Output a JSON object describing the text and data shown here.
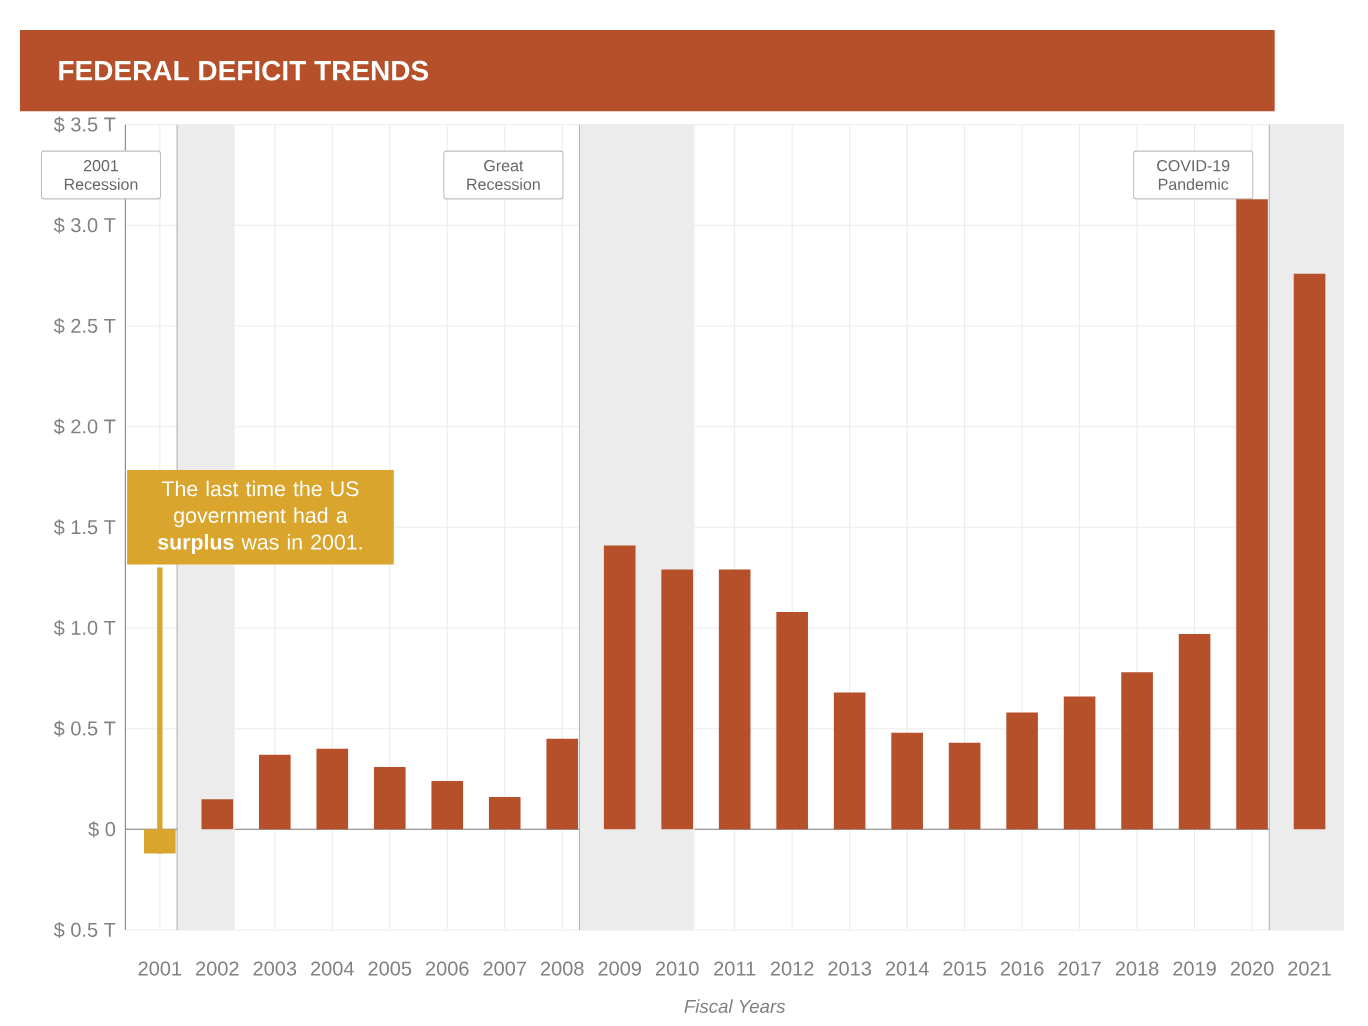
{
  "chart_data": {
    "type": "bar",
    "title": "FEDERAL DEFICIT TRENDS",
    "xlabel": "Fiscal Years",
    "categories": [
      "2001",
      "2002",
      "2003",
      "2004",
      "2005",
      "2006",
      "2007",
      "2008",
      "2009",
      "2010",
      "2011",
      "2012",
      "2013",
      "2014",
      "2015",
      "2016",
      "2017",
      "2018",
      "2019",
      "2020",
      "2021"
    ],
    "values": [
      -0.12,
      0.15,
      0.37,
      0.4,
      0.31,
      0.24,
      0.16,
      0.45,
      1.41,
      1.29,
      1.29,
      1.08,
      0.68,
      0.48,
      0.43,
      0.58,
      0.66,
      0.78,
      0.97,
      3.13,
      2.76
    ],
    "colors": [
      "#d9a52c",
      "#b5502a",
      "#b5502a",
      "#b5502a",
      "#b5502a",
      "#b5502a",
      "#b5502a",
      "#b5502a",
      "#b5502a",
      "#b5502a",
      "#b5502a",
      "#b5502a",
      "#b5502a",
      "#b5502a",
      "#b5502a",
      "#b5502a",
      "#b5502a",
      "#b5502a",
      "#b5502a",
      "#b5502a",
      "#b5502a"
    ],
    "ylim": [
      -0.5,
      3.5
    ],
    "yticks": [
      {
        "value": -0.5,
        "label": "$ 0.5 T"
      },
      {
        "value": 0,
        "label": "$ 0"
      },
      {
        "value": 0.5,
        "label": "$ 0.5 T"
      },
      {
        "value": 1.0,
        "label": "$ 1.0 T"
      },
      {
        "value": 1.5,
        "label": "$ 1.5 T"
      },
      {
        "value": 2.0,
        "label": "$ 2.0 T"
      },
      {
        "value": 2.5,
        "label": "$ 2.5 T"
      },
      {
        "value": 3.0,
        "label": "$ 3.0 T"
      },
      {
        "value": 3.5,
        "label": "$ 3.5 T"
      }
    ],
    "bands": [
      {
        "axis": "x",
        "from": "2001",
        "to": "2002",
        "label": "2001 Recession",
        "color": "#ececec"
      },
      {
        "axis": "x",
        "from": "2008",
        "to": "2010",
        "label": "Great Recession",
        "color": "#ececec"
      },
      {
        "axis": "x",
        "from": "2020",
        "to": "2021",
        "label": "COVID-19 Pandemic",
        "color": "#ececec"
      }
    ],
    "annotations": [
      {
        "text": "The last time the US government had a **surplus** was in 2001.",
        "x": "2001",
        "y": -0.12
      }
    ],
    "grid": true
  }
}
